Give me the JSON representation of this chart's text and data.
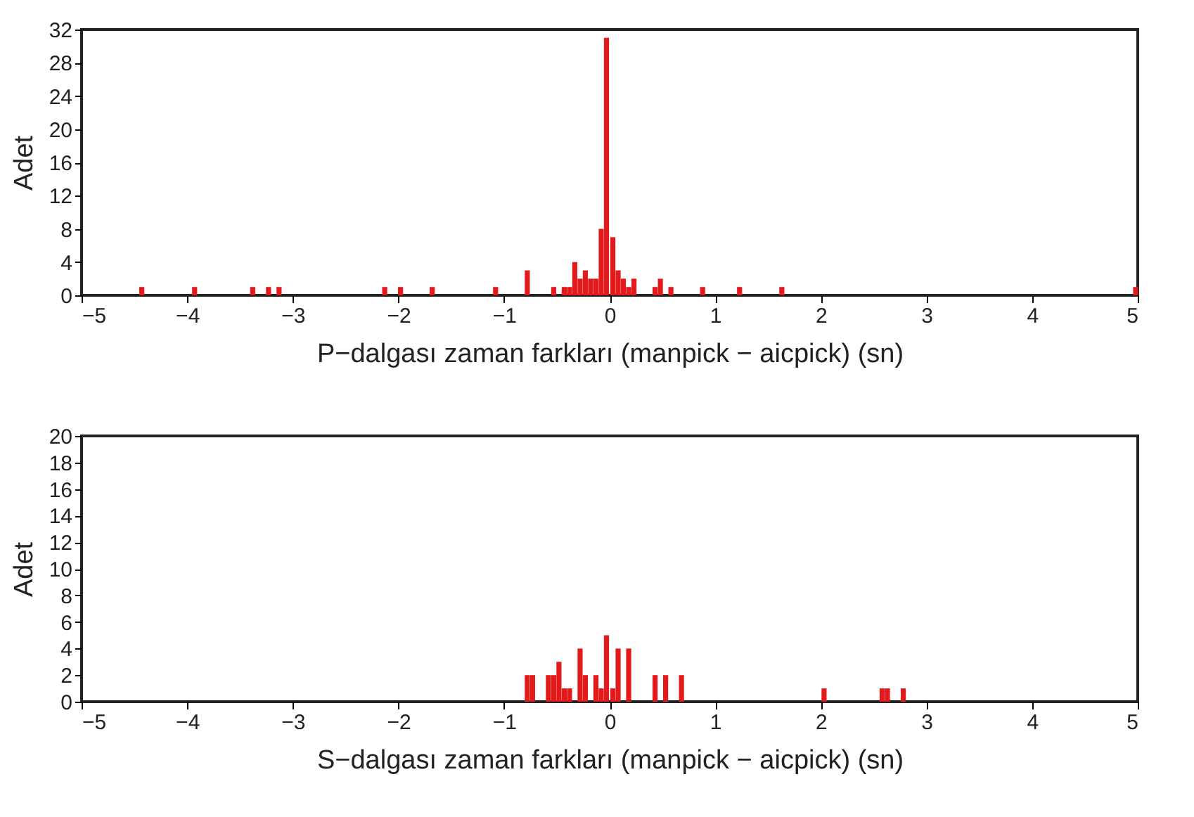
{
  "chart_data": [
    {
      "type": "bar",
      "xlabel": "P−dalgası zaman farkları (manpick − aicpick) (sn)",
      "ylabel": "Adet",
      "color": "#e31a1c",
      "x": [
        -4.43,
        -3.93,
        -3.38,
        -3.23,
        -3.13,
        -2.13,
        -1.98,
        -1.68,
        -1.08,
        -0.78,
        -0.53,
        -0.43,
        -0.38,
        -0.33,
        -0.28,
        -0.23,
        -0.18,
        -0.13,
        -0.08,
        -0.03,
        0.03,
        0.08,
        0.13,
        0.18,
        0.23,
        0.43,
        0.48,
        0.58,
        0.88,
        1.23,
        1.63,
        4.98
      ],
      "values": [
        1,
        1,
        1,
        1,
        1,
        1,
        1,
        1,
        1,
        3,
        1,
        1,
        1,
        4,
        2,
        3,
        2,
        2,
        8,
        31,
        7,
        3,
        2,
        1,
        2,
        1,
        2,
        1,
        1,
        1,
        1,
        1
      ],
      "xlim": [
        -5,
        5
      ],
      "xticks": [
        -5,
        -4,
        -3,
        -2,
        -1,
        0,
        1,
        2,
        3,
        4,
        5
      ],
      "ylim": [
        0,
        32
      ],
      "yticks": [
        0,
        4,
        8,
        12,
        16,
        20,
        24,
        28,
        32
      ]
    },
    {
      "type": "bar",
      "xlabel": "S−dalgası zaman farkları (manpick − aicpick) (sn)",
      "ylabel": "Adet",
      "color": "#e31a1c",
      "x": [
        -0.78,
        -0.73,
        -0.58,
        -0.53,
        -0.48,
        -0.43,
        -0.38,
        -0.28,
        -0.23,
        -0.13,
        -0.08,
        -0.03,
        0.03,
        0.08,
        0.18,
        0.43,
        0.53,
        0.68,
        2.03,
        2.58,
        2.63,
        2.78
      ],
      "values": [
        2,
        2,
        2,
        2,
        3,
        1,
        1,
        4,
        2,
        2,
        1,
        5,
        1,
        4,
        4,
        2,
        2,
        2,
        1,
        1,
        1,
        1
      ],
      "xlim": [
        -5,
        5
      ],
      "xticks": [
        -5,
        -4,
        -3,
        -2,
        -1,
        0,
        1,
        2,
        3,
        4,
        5
      ],
      "ylim": [
        0,
        20
      ],
      "yticks": [
        0,
        2,
        4,
        6,
        8,
        10,
        12,
        14,
        16,
        18,
        20
      ]
    }
  ]
}
